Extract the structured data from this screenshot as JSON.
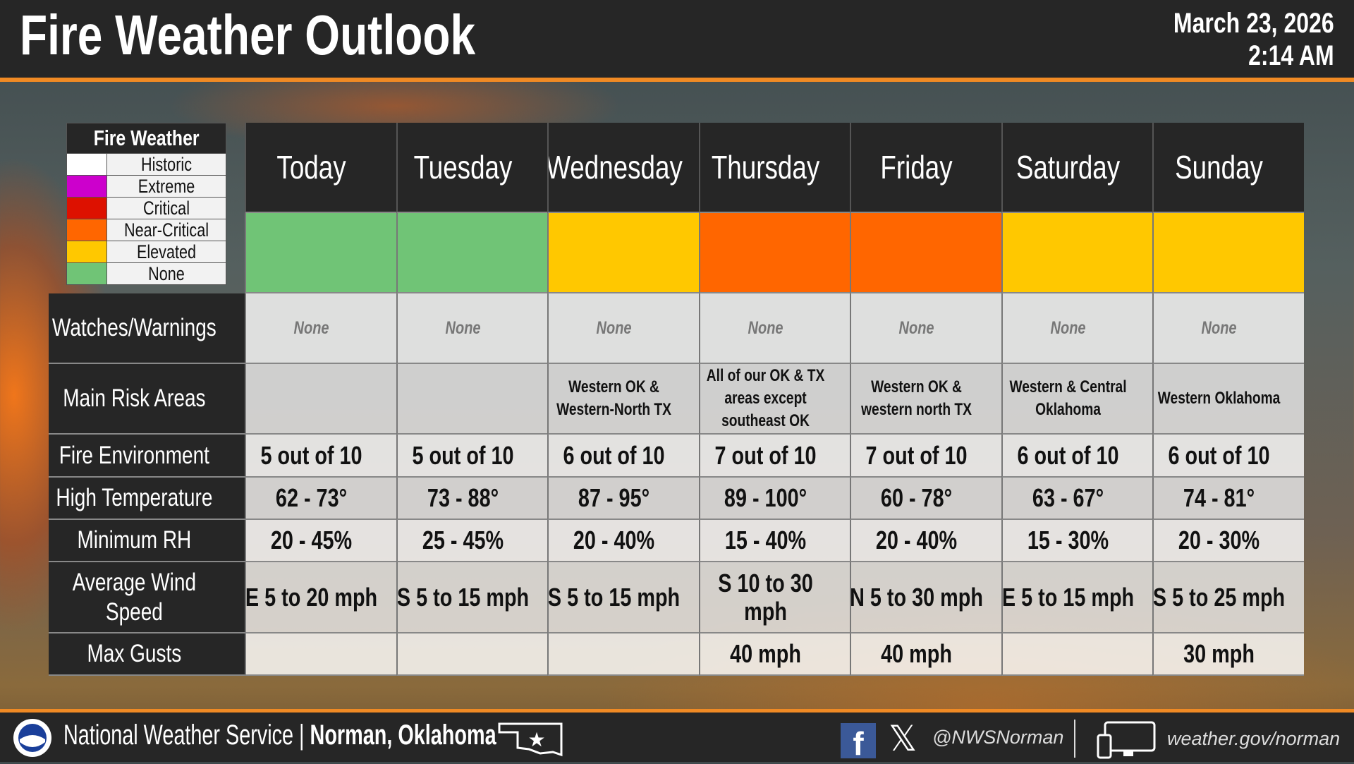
{
  "header": {
    "title": "Fire Weather Outlook",
    "date": "March 23, 2026",
    "time": "2:14 AM"
  },
  "legend": {
    "title": "Fire Weather",
    "items": [
      {
        "label": "Historic",
        "color": "#ffffff"
      },
      {
        "label": "Extreme",
        "color": "#cc00cc"
      },
      {
        "label": "Critical",
        "color": "#dd1100"
      },
      {
        "label": "Near-Critical",
        "color": "#ff6600"
      },
      {
        "label": "Elevated",
        "color": "#ffc800"
      },
      {
        "label": "None",
        "color": "#70c476"
      }
    ]
  },
  "days": [
    {
      "name": "Today",
      "level": "None",
      "color": "#70c476",
      "watches": "None",
      "risk": "",
      "fire_env": "5 out of 10",
      "high_temp": "62 - 73°",
      "min_rh": "20 - 45%",
      "wind": "E 5 to 20 mph",
      "gusts": ""
    },
    {
      "name": "Tuesday",
      "level": "None",
      "color": "#70c476",
      "watches": "None",
      "risk": "",
      "fire_env": "5 out of 10",
      "high_temp": "73 - 88°",
      "min_rh": "25 - 45%",
      "wind": "S 5 to 15 mph",
      "gusts": ""
    },
    {
      "name": "Wednesday",
      "level": "Elevated",
      "color": "#ffc800",
      "watches": "None",
      "risk": "Western OK & Western-North TX",
      "fire_env": "6 out of 10",
      "high_temp": "87 - 95°",
      "min_rh": "20 - 40%",
      "wind": "S 5 to 15 mph",
      "gusts": ""
    },
    {
      "name": "Thursday",
      "level": "Near-Critical",
      "color": "#ff6600",
      "watches": "None",
      "risk": "All of our OK & TX areas except southeast OK",
      "fire_env": "7 out of 10",
      "high_temp": "89 - 100°",
      "min_rh": "15 - 40%",
      "wind": "S 10 to 30 mph",
      "gusts": "40 mph"
    },
    {
      "name": "Friday",
      "level": "Near-Critical",
      "color": "#ff6600",
      "watches": "None",
      "risk": "Western OK & western north TX",
      "fire_env": "7 out of 10",
      "high_temp": "60 - 78°",
      "min_rh": "20 - 40%",
      "wind": "N 5 to 30 mph",
      "gusts": "40 mph"
    },
    {
      "name": "Saturday",
      "level": "Elevated",
      "color": "#ffc800",
      "watches": "None",
      "risk": "Western & Central Oklahoma",
      "fire_env": "6 out of 10",
      "high_temp": "63 - 67°",
      "min_rh": "15 - 30%",
      "wind": "E 5 to 15 mph",
      "gusts": ""
    },
    {
      "name": "Sunday",
      "level": "Elevated",
      "color": "#ffc800",
      "watches": "None",
      "risk": "Western Oklahoma",
      "fire_env": "6 out of 10",
      "high_temp": "74 - 81°",
      "min_rh": "20 - 30%",
      "wind": "S 5 to 25 mph",
      "gusts": "30 mph"
    }
  ],
  "row_labels": {
    "watches": "Watches/Warnings",
    "risk": "Main Risk Areas",
    "fire_env": "Fire Environment",
    "high_temp": "High Temperature",
    "min_rh": "Minimum RH",
    "wind": "Average Wind Speed",
    "gusts": "Max Gusts"
  },
  "footer": {
    "agency": "National Weather Service",
    "office": "Norman, Oklahoma",
    "social": "@NWSNorman",
    "website": "weather.gov/norman",
    "icons": [
      "nws-logo",
      "oklahoma-map",
      "facebook",
      "x",
      "device"
    ]
  }
}
